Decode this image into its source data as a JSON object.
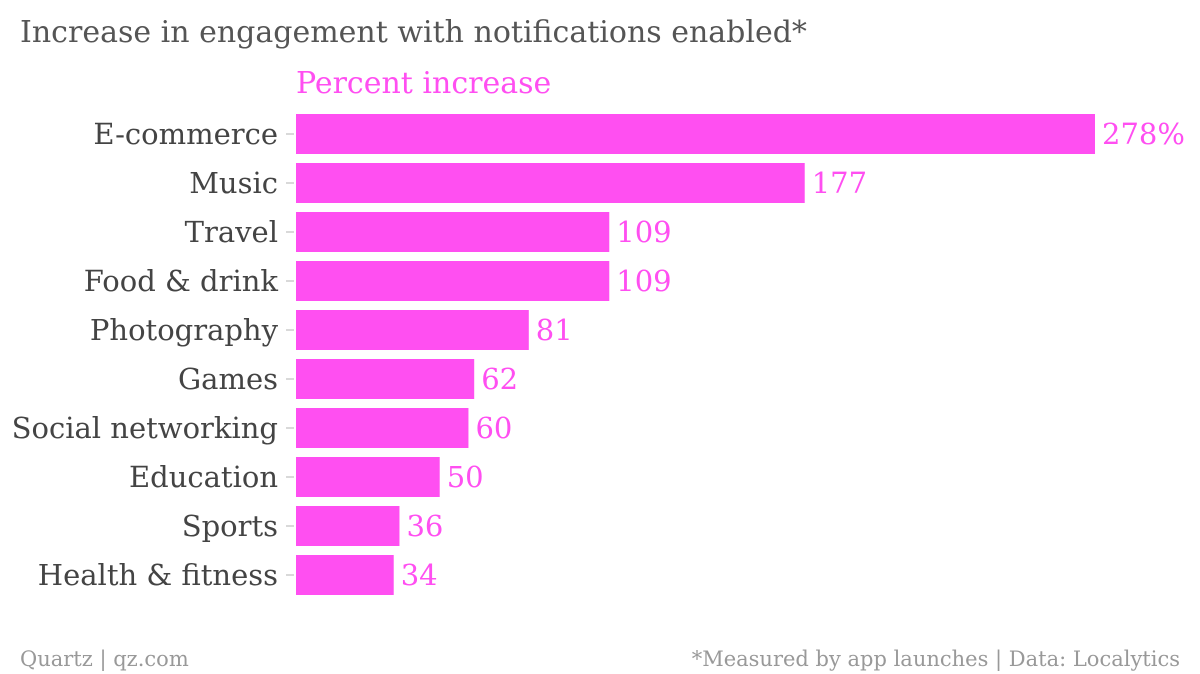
{
  "chart_data": {
    "type": "bar",
    "orientation": "horizontal",
    "title": "Increase in engagement with notifications enabled*",
    "subtitle": "Percent increase",
    "categories": [
      "E-commerce",
      "Music",
      "Travel",
      "Food & drink",
      "Photography",
      "Games",
      "Social networking",
      "Education",
      "Sports",
      "Health & fitness"
    ],
    "values": [
      278,
      177,
      109,
      109,
      81,
      62,
      60,
      50,
      36,
      34
    ],
    "value_labels": [
      "278%",
      "177",
      "109",
      "109",
      "81",
      "62",
      "60",
      "50",
      "36",
      "34"
    ],
    "xlim": [
      0,
      278
    ],
    "grid": false,
    "legend": "none"
  },
  "footer": {
    "source_left": "Quartz | qz.com",
    "source_right": "*Measured by app launches | Data: Localytics"
  },
  "colors": {
    "bar": "#ff4ff1",
    "accent_text": "#ff4ff1",
    "title": "#555555",
    "label": "#444444",
    "footer": "#999999"
  }
}
